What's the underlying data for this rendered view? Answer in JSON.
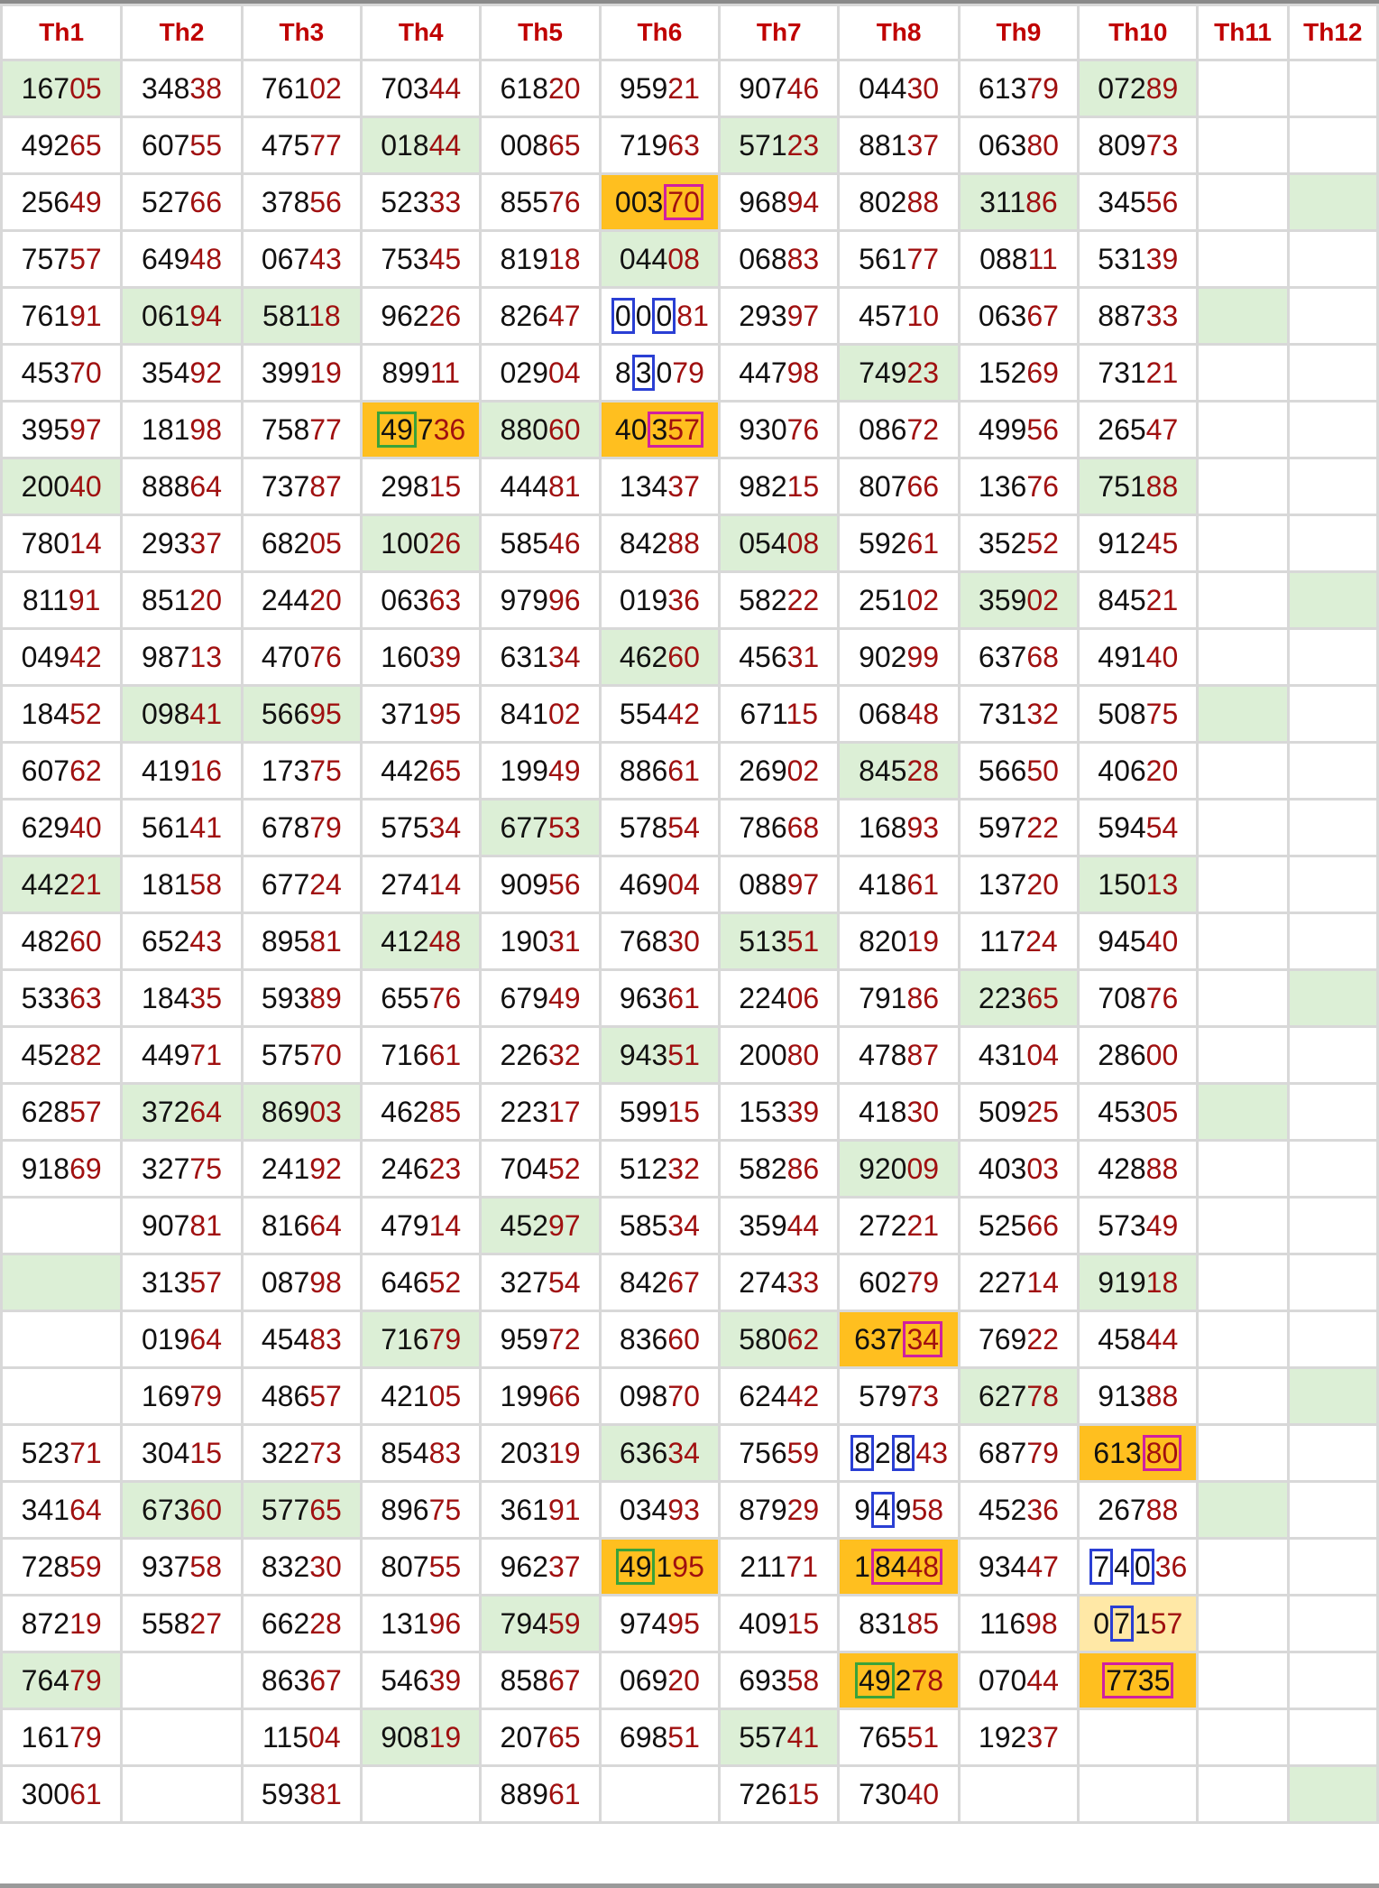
{
  "headers": [
    "Th1",
    "Th2",
    "Th3",
    "Th4",
    "Th5",
    "Th6",
    "Th7",
    "Th8",
    "Th9",
    "Th10",
    "Th11",
    "Th12"
  ],
  "colors": {
    "header_text": "#c00000",
    "tail_digits": "#a01010",
    "green_fill": "#dcefd6",
    "orange_fill": "#ffbf1f",
    "light_orange_fill": "#ffe8a6",
    "blue_box": "#2a3fd4",
    "green_box": "#3aa33a",
    "magenta_box": "#d020a0"
  },
  "rows": [
    [
      {
        "v": "16705",
        "bg": "g"
      },
      {
        "v": "34838"
      },
      {
        "v": "76102"
      },
      {
        "v": "70344"
      },
      {
        "v": "61820"
      },
      {
        "v": "95921"
      },
      {
        "v": "90746"
      },
      {
        "v": "04430"
      },
      {
        "v": "61379"
      },
      {
        "v": "07289",
        "bg": "g"
      },
      {
        "v": ""
      },
      {
        "v": ""
      }
    ],
    [
      {
        "v": "49265"
      },
      {
        "v": "60755"
      },
      {
        "v": "47577"
      },
      {
        "v": "01844",
        "bg": "g"
      },
      {
        "v": "00865"
      },
      {
        "v": "71963"
      },
      {
        "v": "57123",
        "bg": "g"
      },
      {
        "v": "88137"
      },
      {
        "v": "06380"
      },
      {
        "v": "80973"
      },
      {
        "v": ""
      },
      {
        "v": ""
      }
    ],
    [
      {
        "v": "25649"
      },
      {
        "v": "52766"
      },
      {
        "v": "37856"
      },
      {
        "v": "52333"
      },
      {
        "v": "85576"
      },
      {
        "v": "00370",
        "bg": "o",
        "box": [
          {
            "s": 3,
            "e": 5,
            "c": "mag"
          }
        ]
      },
      {
        "v": "96894"
      },
      {
        "v": "80288"
      },
      {
        "v": "31186",
        "bg": "g"
      },
      {
        "v": "34556"
      },
      {
        "v": ""
      },
      {
        "v": "",
        "bg": "g"
      }
    ],
    [
      {
        "v": "75757"
      },
      {
        "v": "64948"
      },
      {
        "v": "06743"
      },
      {
        "v": "75345"
      },
      {
        "v": "81918"
      },
      {
        "v": "04408",
        "bg": "g"
      },
      {
        "v": "06883"
      },
      {
        "v": "56177"
      },
      {
        "v": "08811"
      },
      {
        "v": "53139"
      },
      {
        "v": ""
      },
      {
        "v": ""
      }
    ],
    [
      {
        "v": "76191"
      },
      {
        "v": "06194",
        "bg": "g"
      },
      {
        "v": "58118",
        "bg": "g"
      },
      {
        "v": "96226"
      },
      {
        "v": "82647"
      },
      {
        "v": "00081",
        "box": [
          {
            "s": 0,
            "e": 1,
            "c": "blue"
          },
          {
            "s": 2,
            "e": 3,
            "c": "blue"
          }
        ]
      },
      {
        "v": "29397"
      },
      {
        "v": "45710"
      },
      {
        "v": "06367"
      },
      {
        "v": "88733"
      },
      {
        "v": "",
        "bg": "g"
      },
      {
        "v": ""
      }
    ],
    [
      {
        "v": "45370"
      },
      {
        "v": "35492"
      },
      {
        "v": "39919"
      },
      {
        "v": "89911"
      },
      {
        "v": "02904"
      },
      {
        "v": "83079",
        "box": [
          {
            "s": 1,
            "e": 2,
            "c": "blue"
          }
        ]
      },
      {
        "v": "44798"
      },
      {
        "v": "74923",
        "bg": "g"
      },
      {
        "v": "15269"
      },
      {
        "v": "73121"
      },
      {
        "v": ""
      },
      {
        "v": ""
      }
    ],
    [
      {
        "v": "39597"
      },
      {
        "v": "18198"
      },
      {
        "v": "75877"
      },
      {
        "v": "49736",
        "bg": "o",
        "box": [
          {
            "s": 0,
            "e": 2,
            "c": "green"
          }
        ]
      },
      {
        "v": "88060",
        "bg": "g"
      },
      {
        "v": "40357",
        "bg": "o",
        "box": [
          {
            "s": 2,
            "e": 5,
            "c": "mag"
          }
        ]
      },
      {
        "v": "93076"
      },
      {
        "v": "08672"
      },
      {
        "v": "49956"
      },
      {
        "v": "26547"
      },
      {
        "v": ""
      },
      {
        "v": ""
      }
    ],
    [
      {
        "v": "20040",
        "bg": "g"
      },
      {
        "v": "88864"
      },
      {
        "v": "73787"
      },
      {
        "v": "29815"
      },
      {
        "v": "44481"
      },
      {
        "v": "13437"
      },
      {
        "v": "98215"
      },
      {
        "v": "80766"
      },
      {
        "v": "13676"
      },
      {
        "v": "75188",
        "bg": "g"
      },
      {
        "v": ""
      },
      {
        "v": ""
      }
    ],
    [
      {
        "v": "78014"
      },
      {
        "v": "29337"
      },
      {
        "v": "68205"
      },
      {
        "v": "10026",
        "bg": "g"
      },
      {
        "v": "58546"
      },
      {
        "v": "84288"
      },
      {
        "v": "05408",
        "bg": "g"
      },
      {
        "v": "59261"
      },
      {
        "v": "35252"
      },
      {
        "v": "91245"
      },
      {
        "v": ""
      },
      {
        "v": ""
      }
    ],
    [
      {
        "v": "81191"
      },
      {
        "v": "85120"
      },
      {
        "v": "24420"
      },
      {
        "v": "06363"
      },
      {
        "v": "97996"
      },
      {
        "v": "01936"
      },
      {
        "v": "58222"
      },
      {
        "v": "25102"
      },
      {
        "v": "35902",
        "bg": "g"
      },
      {
        "v": "84521"
      },
      {
        "v": ""
      },
      {
        "v": "",
        "bg": "g"
      }
    ],
    [
      {
        "v": "04942"
      },
      {
        "v": "98713"
      },
      {
        "v": "47076"
      },
      {
        "v": "16039"
      },
      {
        "v": "63134"
      },
      {
        "v": "46260",
        "bg": "g"
      },
      {
        "v": "45631"
      },
      {
        "v": "90299"
      },
      {
        "v": "63768"
      },
      {
        "v": "49140"
      },
      {
        "v": ""
      },
      {
        "v": ""
      }
    ],
    [
      {
        "v": "18452"
      },
      {
        "v": "09841",
        "bg": "g"
      },
      {
        "v": "56695",
        "bg": "g"
      },
      {
        "v": "37195"
      },
      {
        "v": "84102"
      },
      {
        "v": "55442"
      },
      {
        "v": "67115"
      },
      {
        "v": "06848"
      },
      {
        "v": "73132"
      },
      {
        "v": "50875"
      },
      {
        "v": "",
        "bg": "g"
      },
      {
        "v": ""
      }
    ],
    [
      {
        "v": "60762"
      },
      {
        "v": "41916"
      },
      {
        "v": "17375"
      },
      {
        "v": "44265"
      },
      {
        "v": "19949"
      },
      {
        "v": "88661"
      },
      {
        "v": "26902"
      },
      {
        "v": "84528",
        "bg": "g"
      },
      {
        "v": "56650"
      },
      {
        "v": "40620"
      },
      {
        "v": ""
      },
      {
        "v": ""
      }
    ],
    [
      {
        "v": "62940"
      },
      {
        "v": "56141"
      },
      {
        "v": "67879"
      },
      {
        "v": "57534"
      },
      {
        "v": "67753",
        "bg": "g"
      },
      {
        "v": "57854"
      },
      {
        "v": "78668"
      },
      {
        "v": "16893"
      },
      {
        "v": "59722"
      },
      {
        "v": "59454"
      },
      {
        "v": ""
      },
      {
        "v": ""
      }
    ],
    [
      {
        "v": "44221",
        "bg": "g"
      },
      {
        "v": "18158"
      },
      {
        "v": "67724"
      },
      {
        "v": "27414"
      },
      {
        "v": "90956"
      },
      {
        "v": "46904"
      },
      {
        "v": "08897"
      },
      {
        "v": "41861"
      },
      {
        "v": "13720"
      },
      {
        "v": "15013",
        "bg": "g"
      },
      {
        "v": ""
      },
      {
        "v": ""
      }
    ],
    [
      {
        "v": "48260"
      },
      {
        "v": "65243"
      },
      {
        "v": "89581"
      },
      {
        "v": "41248",
        "bg": "g"
      },
      {
        "v": "19031"
      },
      {
        "v": "76830"
      },
      {
        "v": "51351",
        "bg": "g"
      },
      {
        "v": "82019"
      },
      {
        "v": "11724"
      },
      {
        "v": "94540"
      },
      {
        "v": ""
      },
      {
        "v": ""
      }
    ],
    [
      {
        "v": "53363"
      },
      {
        "v": "18435"
      },
      {
        "v": "59389"
      },
      {
        "v": "65576"
      },
      {
        "v": "67949"
      },
      {
        "v": "96361"
      },
      {
        "v": "22406"
      },
      {
        "v": "79186"
      },
      {
        "v": "22365",
        "bg": "g"
      },
      {
        "v": "70876"
      },
      {
        "v": ""
      },
      {
        "v": "",
        "bg": "g"
      }
    ],
    [
      {
        "v": "45282"
      },
      {
        "v": "44971"
      },
      {
        "v": "57570"
      },
      {
        "v": "71661"
      },
      {
        "v": "22632"
      },
      {
        "v": "94351",
        "bg": "g"
      },
      {
        "v": "20080"
      },
      {
        "v": "47887"
      },
      {
        "v": "43104"
      },
      {
        "v": "28600"
      },
      {
        "v": ""
      },
      {
        "v": ""
      }
    ],
    [
      {
        "v": "62857"
      },
      {
        "v": "37264",
        "bg": "g"
      },
      {
        "v": "86903",
        "bg": "g"
      },
      {
        "v": "46285"
      },
      {
        "v": "22317"
      },
      {
        "v": "59915"
      },
      {
        "v": "15339"
      },
      {
        "v": "41830"
      },
      {
        "v": "50925"
      },
      {
        "v": "45305"
      },
      {
        "v": "",
        "bg": "g"
      },
      {
        "v": ""
      }
    ],
    [
      {
        "v": "91869"
      },
      {
        "v": "32775"
      },
      {
        "v": "24192"
      },
      {
        "v": "24623"
      },
      {
        "v": "70452"
      },
      {
        "v": "51232"
      },
      {
        "v": "58286"
      },
      {
        "v": "92009",
        "bg": "g"
      },
      {
        "v": "40303"
      },
      {
        "v": "42888"
      },
      {
        "v": ""
      },
      {
        "v": ""
      }
    ],
    [
      {
        "v": ""
      },
      {
        "v": "90781"
      },
      {
        "v": "81664"
      },
      {
        "v": "47914"
      },
      {
        "v": "45297",
        "bg": "g"
      },
      {
        "v": "58534"
      },
      {
        "v": "35944"
      },
      {
        "v": "27221"
      },
      {
        "v": "52566"
      },
      {
        "v": "57349"
      },
      {
        "v": ""
      },
      {
        "v": ""
      }
    ],
    [
      {
        "v": "",
        "bg": "g"
      },
      {
        "v": "31357"
      },
      {
        "v": "08798"
      },
      {
        "v": "64652"
      },
      {
        "v": "32754"
      },
      {
        "v": "84267"
      },
      {
        "v": "27433"
      },
      {
        "v": "60279"
      },
      {
        "v": "22714"
      },
      {
        "v": "91918",
        "bg": "g"
      },
      {
        "v": ""
      },
      {
        "v": ""
      }
    ],
    [
      {
        "v": ""
      },
      {
        "v": "01964"
      },
      {
        "v": "45483"
      },
      {
        "v": "71679",
        "bg": "g"
      },
      {
        "v": "95972"
      },
      {
        "v": "83660"
      },
      {
        "v": "58062",
        "bg": "g"
      },
      {
        "v": "63734",
        "bg": "o",
        "box": [
          {
            "s": 3,
            "e": 5,
            "c": "mag"
          }
        ]
      },
      {
        "v": "76922"
      },
      {
        "v": "45844"
      },
      {
        "v": ""
      },
      {
        "v": ""
      }
    ],
    [
      {
        "v": ""
      },
      {
        "v": "16979"
      },
      {
        "v": "48657"
      },
      {
        "v": "42105"
      },
      {
        "v": "19966"
      },
      {
        "v": "09870"
      },
      {
        "v": "62442"
      },
      {
        "v": "57973"
      },
      {
        "v": "62778",
        "bg": "g"
      },
      {
        "v": "91388"
      },
      {
        "v": ""
      },
      {
        "v": "",
        "bg": "g"
      }
    ],
    [
      {
        "v": "52371"
      },
      {
        "v": "30415"
      },
      {
        "v": "32273"
      },
      {
        "v": "85483"
      },
      {
        "v": "20319"
      },
      {
        "v": "63634",
        "bg": "g"
      },
      {
        "v": "75659"
      },
      {
        "v": "82843",
        "box": [
          {
            "s": 0,
            "e": 1,
            "c": "blue"
          },
          {
            "s": 2,
            "e": 3,
            "c": "blue"
          }
        ]
      },
      {
        "v": "68779"
      },
      {
        "v": "61380",
        "bg": "o",
        "box": [
          {
            "s": 3,
            "e": 5,
            "c": "mag"
          }
        ]
      },
      {
        "v": ""
      },
      {
        "v": ""
      }
    ],
    [
      {
        "v": "34164"
      },
      {
        "v": "67360",
        "bg": "g"
      },
      {
        "v": "57765",
        "bg": "g"
      },
      {
        "v": "89675"
      },
      {
        "v": "36191"
      },
      {
        "v": "03493"
      },
      {
        "v": "87929"
      },
      {
        "v": "94958",
        "box": [
          {
            "s": 1,
            "e": 2,
            "c": "blue"
          }
        ]
      },
      {
        "v": "45236"
      },
      {
        "v": "26788"
      },
      {
        "v": "",
        "bg": "g"
      },
      {
        "v": ""
      }
    ],
    [
      {
        "v": "72859"
      },
      {
        "v": "93758"
      },
      {
        "v": "83230"
      },
      {
        "v": "80755"
      },
      {
        "v": "96237"
      },
      {
        "v": "49195",
        "bg": "o",
        "box": [
          {
            "s": 0,
            "e": 2,
            "c": "green"
          }
        ]
      },
      {
        "v": "21171"
      },
      {
        "v": "18448",
        "bg": "o",
        "box": [
          {
            "s": 1,
            "e": 5,
            "c": "mag"
          }
        ]
      },
      {
        "v": "93447"
      },
      {
        "v": "74036",
        "box": [
          {
            "s": 0,
            "e": 1,
            "c": "blue"
          },
          {
            "s": 2,
            "e": 3,
            "c": "blue"
          }
        ]
      },
      {
        "v": ""
      },
      {
        "v": ""
      }
    ],
    [
      {
        "v": "87219"
      },
      {
        "v": "55827"
      },
      {
        "v": "66228"
      },
      {
        "v": "13196"
      },
      {
        "v": "79459",
        "bg": "g"
      },
      {
        "v": "97495"
      },
      {
        "v": "40915"
      },
      {
        "v": "83185"
      },
      {
        "v": "11698"
      },
      {
        "v": "07157",
        "bg": "y",
        "box": [
          {
            "s": 1,
            "e": 2,
            "c": "blue"
          }
        ]
      },
      {
        "v": ""
      },
      {
        "v": ""
      }
    ],
    [
      {
        "v": "76479",
        "bg": "g"
      },
      {
        "v": ""
      },
      {
        "v": "86367"
      },
      {
        "v": "54639"
      },
      {
        "v": "85867"
      },
      {
        "v": "06920"
      },
      {
        "v": "69358"
      },
      {
        "v": "49278",
        "bg": "o",
        "box": [
          {
            "s": 0,
            "e": 2,
            "c": "green"
          }
        ]
      },
      {
        "v": "07044"
      },
      {
        "v": "7735",
        "bg": "o",
        "box": [
          {
            "s": 0,
            "e": 4,
            "c": "mag"
          }
        ]
      },
      {
        "v": ""
      },
      {
        "v": ""
      }
    ],
    [
      {
        "v": "16179"
      },
      {
        "v": ""
      },
      {
        "v": "11504"
      },
      {
        "v": "90819",
        "bg": "g"
      },
      {
        "v": "20765"
      },
      {
        "v": "69851"
      },
      {
        "v": "55741",
        "bg": "g"
      },
      {
        "v": "76551"
      },
      {
        "v": "19237"
      },
      {
        "v": ""
      },
      {
        "v": ""
      },
      {
        "v": ""
      }
    ],
    [
      {
        "v": "30061"
      },
      {
        "v": ""
      },
      {
        "v": "59381"
      },
      {
        "v": ""
      },
      {
        "v": "88961"
      },
      {
        "v": ""
      },
      {
        "v": "72615"
      },
      {
        "v": "73040"
      },
      {
        "v": ""
      },
      {
        "v": ""
      },
      {
        "v": ""
      },
      {
        "v": "",
        "bg": "g"
      }
    ]
  ]
}
